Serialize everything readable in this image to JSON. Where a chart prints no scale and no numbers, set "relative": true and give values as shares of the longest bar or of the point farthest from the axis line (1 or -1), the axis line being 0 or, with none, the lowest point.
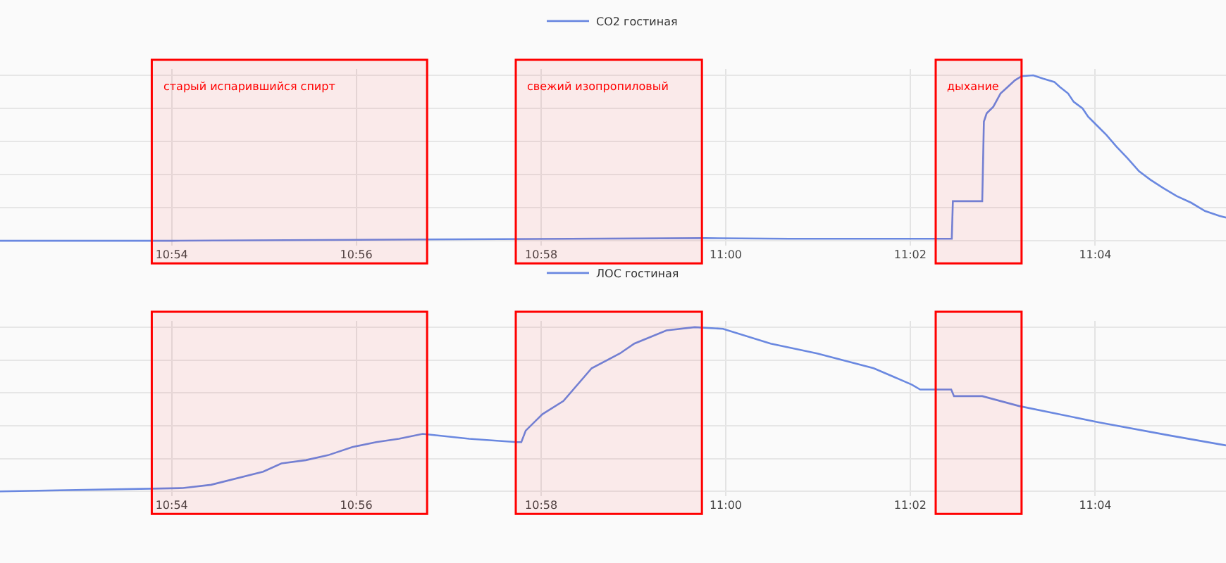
{
  "chart_data": [
    {
      "type": "line",
      "relative": true,
      "legend": "top",
      "grid": true,
      "tick_labels": "x",
      "marker": "none",
      "line_style": "solid",
      "x": [
        10.869,
        10.9,
        10.9453,
        10.9962,
        11.0115,
        11.0408,
        11.041,
        11.0463,
        11.0466,
        11.0471,
        11.0483,
        11.0496,
        11.0509,
        11.0522,
        11.0534,
        11.0555,
        11.0573,
        11.0593,
        11.0603,
        11.0618,
        11.0628,
        11.0644,
        11.0654,
        11.0669,
        11.0687,
        11.0705,
        11.0725,
        11.0746,
        11.0766,
        11.0789,
        11.0814,
        11.084,
        11.0865,
        11.0891,
        11.0903
      ],
      "series": [
        {
          "name": "CO2 гостиная",
          "color": "#6a88e0",
          "values": [
            0,
            0,
            0.008,
            0.016,
            0.012,
            0.012,
            0.239,
            0.239,
            0.72,
            0.77,
            0.81,
            0.89,
            0.93,
            0.97,
            0.995,
            1,
            0.98,
            0.96,
            0.93,
            0.89,
            0.84,
            0.8,
            0.75,
            0.7,
            0.64,
            0.57,
            0.5,
            0.42,
            0.37,
            0.32,
            0.27,
            0.23,
            0.18,
            0.15,
            0.14
          ]
        }
      ],
      "xlim": [
        10.869,
        11.0903
      ],
      "xticks": [
        {
          "value": 10.9,
          "label": "10:54"
        },
        {
          "value": 10.9333,
          "label": "10:56"
        },
        {
          "value": 10.9667,
          "label": "10:58"
        },
        {
          "value": 11.0,
          "label": "11:00"
        },
        {
          "value": 11.0333,
          "label": "11:02"
        },
        {
          "value": 11.0667,
          "label": "11:04"
        }
      ],
      "bands": [
        {
          "axis": "x",
          "from": 10.8964,
          "to": 10.9461,
          "label": "старый испарившийся спирт",
          "color": "#ff0000"
        },
        {
          "axis": "x",
          "from": 10.9621,
          "to": 10.9957,
          "label": "свежий изопропиловый",
          "color": "#ff0000"
        },
        {
          "axis": "x",
          "from": 11.0379,
          "to": 11.0534,
          "label": "дыхание",
          "color": "#ff0000"
        }
      ]
    },
    {
      "type": "line",
      "relative": true,
      "legend": "top",
      "grid": true,
      "tick_labels": "x",
      "marker": "none",
      "line_style": "solid",
      "x": [
        10.869,
        10.902,
        10.9071,
        10.9165,
        10.9198,
        10.9242,
        10.9282,
        10.9326,
        10.9369,
        10.941,
        10.9453,
        10.9537,
        10.9623,
        10.9631,
        10.9639,
        10.9669,
        10.9707,
        10.9758,
        10.9809,
        10.9835,
        10.9893,
        10.9944,
        10.9995,
        11.0081,
        11.0165,
        11.0267,
        11.0336,
        11.0351,
        11.0407,
        11.0412,
        11.0463,
        11.0529,
        11.0674,
        11.0802,
        11.0903
      ],
      "series": [
        {
          "name": "ЛОС гостиная",
          "color": "#6a88e0",
          "values": [
            0,
            0.02,
            0.04,
            0.12,
            0.17,
            0.19,
            0.22,
            0.27,
            0.3,
            0.32,
            0.35,
            0.32,
            0.3,
            0.3,
            0.37,
            0.47,
            0.55,
            0.75,
            0.84,
            0.9,
            0.98,
            1,
            0.99,
            0.9,
            0.84,
            0.75,
            0.65,
            0.62,
            0.62,
            0.58,
            0.58,
            0.52,
            0.42,
            0.34,
            0.28
          ]
        }
      ],
      "xlim": [
        10.869,
        11.0903
      ],
      "xticks": [
        {
          "value": 10.9,
          "label": "10:54"
        },
        {
          "value": 10.9333,
          "label": "10:56"
        },
        {
          "value": 10.9667,
          "label": "10:58"
        },
        {
          "value": 11.0,
          "label": "11:00"
        },
        {
          "value": 11.0333,
          "label": "11:02"
        },
        {
          "value": 11.0667,
          "label": "11:04"
        }
      ],
      "bands": [
        {
          "axis": "x",
          "from": 10.8964,
          "to": 10.9461,
          "color": "#ff0000"
        },
        {
          "axis": "x",
          "from": 10.9621,
          "to": 10.9957,
          "color": "#ff0000"
        },
        {
          "axis": "x",
          "from": 11.0379,
          "to": 11.0534,
          "color": "#ff0000"
        }
      ]
    }
  ]
}
